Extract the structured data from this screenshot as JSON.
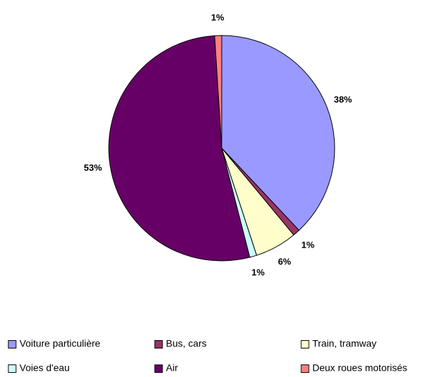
{
  "chart_data": {
    "type": "pie",
    "categories": [
      "Voiture particulière",
      "Bus, cars",
      "Train, tramway",
      "Voies d'eau",
      "Air",
      "Deux roues motorisés"
    ],
    "values": [
      38,
      1,
      6,
      1,
      53,
      1
    ],
    "value_labels": [
      "38%",
      "1%",
      "6%",
      "1%",
      "53%",
      "1%"
    ],
    "colors": [
      "#9999ff",
      "#993366",
      "#ffffcc",
      "#ccffff",
      "#660066",
      "#ff8080"
    ]
  }
}
